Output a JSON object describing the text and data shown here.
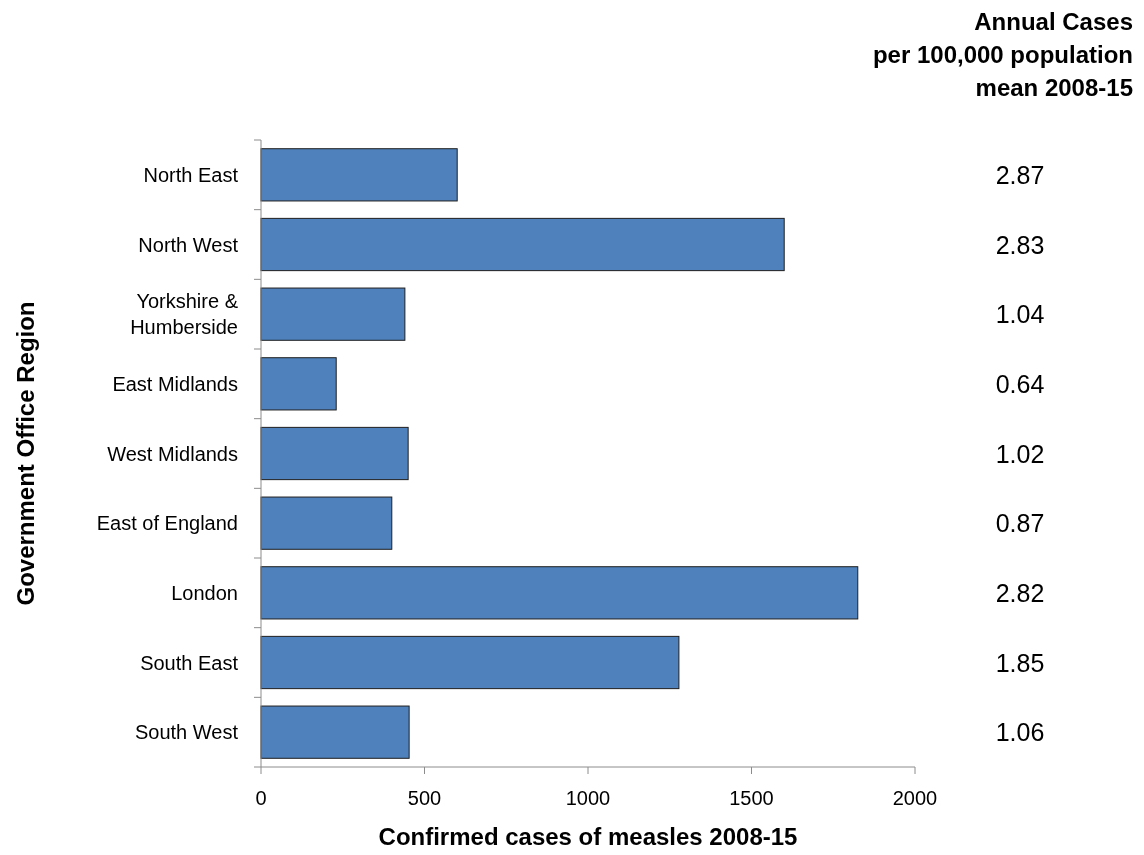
{
  "chart_data": {
    "type": "bar",
    "orientation": "horizontal",
    "categories": [
      "North East",
      "North West",
      "Yorkshire &\nHumberside",
      "East Midlands",
      "West Midlands",
      "East of England",
      "London",
      "South East",
      "South West"
    ],
    "values": [
      600,
      1600,
      440,
      230,
      450,
      400,
      1825,
      1278,
      453
    ],
    "color": "#4f81bd",
    "xlim": [
      0,
      2000
    ],
    "xticks": [
      0,
      500,
      1000,
      1500,
      2000
    ],
    "xlabel": "Confirmed cases of measles 2008-15",
    "ylabel": "Government Office Region",
    "grid": false,
    "annotations": [
      "Annual Cases\nper 100,000 population\nmean 2008-15",
      "2.87",
      "2.83",
      "1.04",
      "0.64",
      "1.02",
      "0.87",
      "2.82",
      "1.85",
      "1.06"
    ]
  }
}
